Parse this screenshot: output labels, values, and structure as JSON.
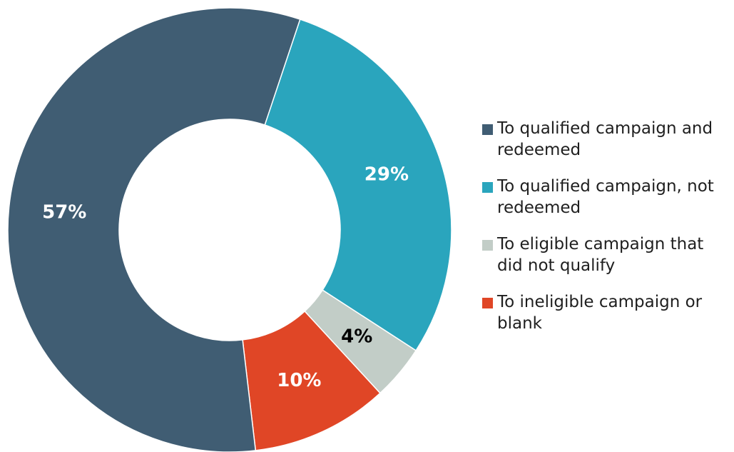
{
  "chart_data": {
    "type": "pie",
    "donut": true,
    "categories": [
      "To qualified campaign and redeemed",
      "To qualified campaign, not redeemed",
      "To eligible campaign that did not qualify",
      "To ineligible campaign or blank"
    ],
    "values": [
      57,
      29,
      4,
      10
    ],
    "value_labels": [
      "57%",
      "29%",
      "4%",
      "10%"
    ],
    "colors": [
      "#405d73",
      "#2aa5bd",
      "#c2cdc7",
      "#e04626"
    ],
    "label_colors": [
      "#ffffff",
      "#ffffff",
      "#000000",
      "#ffffff"
    ],
    "legend_position": "right"
  }
}
